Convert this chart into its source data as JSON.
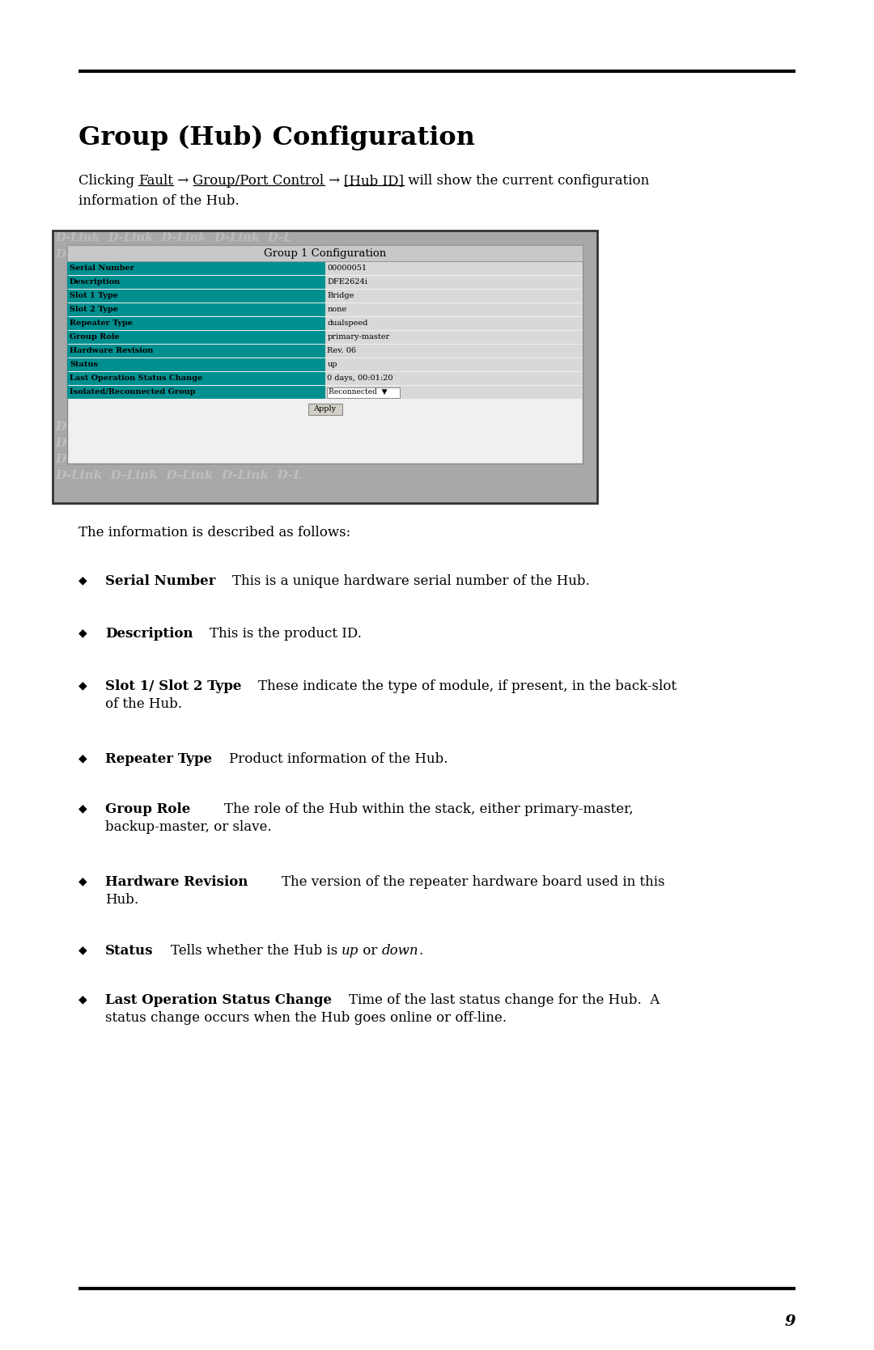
{
  "title": "Group (Hub) Configuration",
  "page_number": "9",
  "table_title": "Group 1 Configuration",
  "table_rows": [
    [
      "Serial Number",
      "00000051"
    ],
    [
      "Description",
      "DFE2624i"
    ],
    [
      "Slot 1 Type",
      "Bridge"
    ],
    [
      "Slot 2 Type",
      "none"
    ],
    [
      "Repeater Type",
      "dualspeed"
    ],
    [
      "Group Role",
      "primary-master"
    ],
    [
      "Hardware Revision",
      "Rev. 06"
    ],
    [
      "Status",
      "up"
    ],
    [
      "Last Operation Status Change",
      "0 days, 00:01:20"
    ],
    [
      "Isolated/Reconnected Group",
      "Reconnected"
    ]
  ],
  "bg_color": "#ffffff",
  "text_color": "#000000",
  "teal_color": "#009090",
  "dlink_bg": "#a8a8a8",
  "table_header_bg": "#d0d0d0",
  "row_value_bg": "#e0e0e0",
  "apply_btn_bg": "#d4d0c8"
}
